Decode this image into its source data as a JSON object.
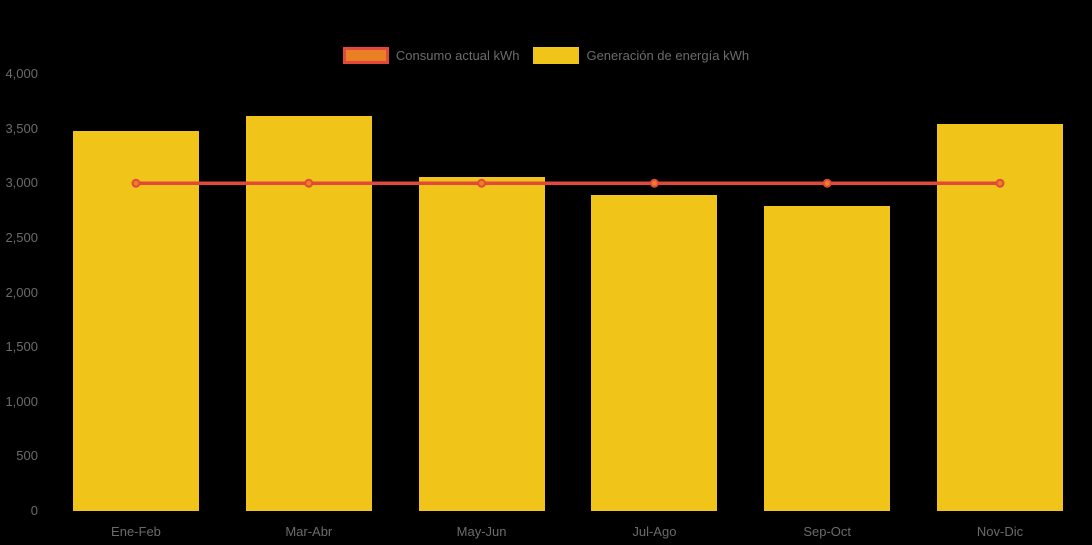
{
  "legend": {
    "items": [
      {
        "label": "Consumo actual kWh",
        "series_type": "line",
        "swatch_fill": "#E98024",
        "swatch_border": "#E2493B"
      },
      {
        "label": "Generación de energía kWh",
        "series_type": "bar",
        "swatch_fill": "#F0C419"
      }
    ]
  },
  "chart_data": {
    "type": "bar",
    "title": "",
    "categories": [
      "Ene-Feb",
      "Mar-Abr",
      "May-Jun",
      "Jul-Ago",
      "Sep-Oct",
      "Nov-Dic"
    ],
    "series": [
      {
        "name": "Generación de energía kWh",
        "type": "bar",
        "color": "#F0C419",
        "values": [
          3480,
          3620,
          3060,
          2890,
          2790,
          3540
        ]
      },
      {
        "name": "Consumo actual kWh",
        "type": "line",
        "color": "#E2493B",
        "marker_fill": "#E98024",
        "marker_border": "#E2493B",
        "values": [
          3000,
          3000,
          3000,
          3000,
          3000,
          3000
        ]
      }
    ],
    "ylim": [
      0,
      4000
    ],
    "ytick_step": 500,
    "ytick_labels": [
      "0",
      "500",
      "1,000",
      "1,500",
      "2,000",
      "2,500",
      "3,000",
      "3,500",
      "4,000"
    ],
    "xlabel": "",
    "ylabel": "",
    "grid": false,
    "legend_position": "top-center",
    "background_color": "#000000",
    "text_color": "#6B6B6B"
  }
}
